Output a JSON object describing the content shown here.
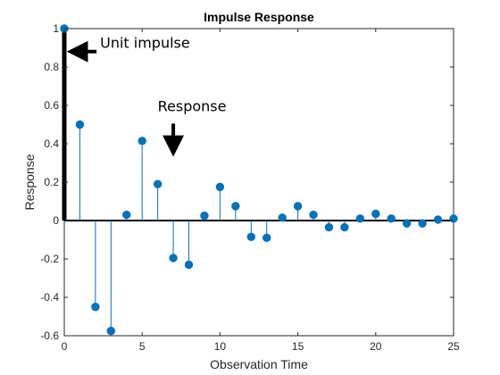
{
  "chart_data": {
    "type": "stem",
    "title": "Impulse Response",
    "xlabel": "Observation Time",
    "ylabel": "Response",
    "xlim": [
      0,
      25
    ],
    "ylim": [
      -0.6,
      1
    ],
    "xticks": [
      0,
      5,
      10,
      15,
      20,
      25
    ],
    "yticks": [
      -0.6,
      -0.4,
      -0.2,
      0,
      0.2,
      0.4,
      0.6,
      0.8,
      1
    ],
    "ytick_labels": [
      "-0.6",
      "-0.4",
      "-0.2",
      "0",
      "0.2",
      "0.4",
      "0.6",
      "0.8",
      "1"
    ],
    "grid": false,
    "series": [
      {
        "color": "#0072bd",
        "x": [
          0,
          1,
          2,
          3,
          4,
          5,
          6,
          7,
          8,
          9,
          10,
          11,
          12,
          13,
          14,
          15,
          16,
          17,
          18,
          19,
          20,
          21,
          22,
          23,
          24,
          25
        ],
        "values": [
          1.0,
          0.5,
          -0.45,
          -0.575,
          0.03,
          0.415,
          0.19,
          -0.195,
          -0.23,
          0.025,
          0.175,
          0.075,
          -0.085,
          -0.09,
          0.015,
          0.075,
          0.03,
          -0.035,
          -0.035,
          0.01,
          0.035,
          0.01,
          -0.015,
          -0.015,
          0.005,
          0.01
        ]
      }
    ],
    "annotations": [
      {
        "text": "Unit impulse",
        "target_x": 0.5,
        "target_y": 0.88,
        "text_x": 2.3,
        "text_y": 0.9,
        "direction": "left"
      },
      {
        "text": "Response",
        "target_x": 7,
        "target_y": 0.36,
        "text_x": 6,
        "text_y": 0.57,
        "direction": "down"
      }
    ],
    "colors": {
      "stem": "#0072bd",
      "axis": "#262626",
      "arrow": "#000000"
    }
  }
}
